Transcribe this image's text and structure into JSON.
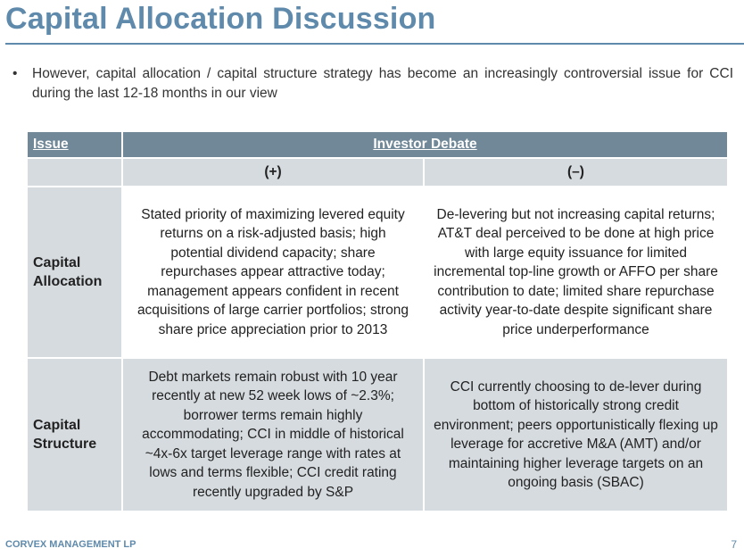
{
  "title": "Capital Allocation Discussion",
  "bullet": "However, capital allocation / capital structure strategy has become an increasingly controversial issue for CCI during the last 12-18 months in our view",
  "table": {
    "headers": {
      "issue": "Issue",
      "debate": "Investor Debate"
    },
    "subheaders": {
      "plus": "(+)",
      "minus": "(–)"
    },
    "rows": [
      {
        "issue": "Capital Allocation",
        "plus": "Stated priority of maximizing levered equity returns on a risk-adjusted basis; high potential dividend capacity; share repurchases appear attractive today; management appears confident in recent acquisitions of large carrier portfolios; strong share price appreciation prior to 2013",
        "minus": "De-levering but not increasing capital returns; AT&T deal perceived to be done at high price with large equity issuance for limited incremental top-line growth or AFFO per share contribution to date; limited share repurchase activity year-to-date despite significant share price underperformance"
      },
      {
        "issue": "Capital Structure",
        "plus": "Debt markets remain robust with 10 year recently at new 52 week lows of ~2.3%; borrower terms remain highly accommodating; CCI in middle of historical ~4x-6x target leverage range with rates at lows and terms flexible; CCI credit rating recently upgraded by S&P",
        "minus": "CCI currently choosing to de-lever during bottom of historically strong credit environment; peers opportunistically flexing up leverage for accretive M&A (AMT) and/or maintaining higher leverage targets on an ongoing basis (SBAC)"
      }
    ]
  },
  "footer": {
    "company": "CORVEX MANAGEMENT LP",
    "page": "7"
  }
}
